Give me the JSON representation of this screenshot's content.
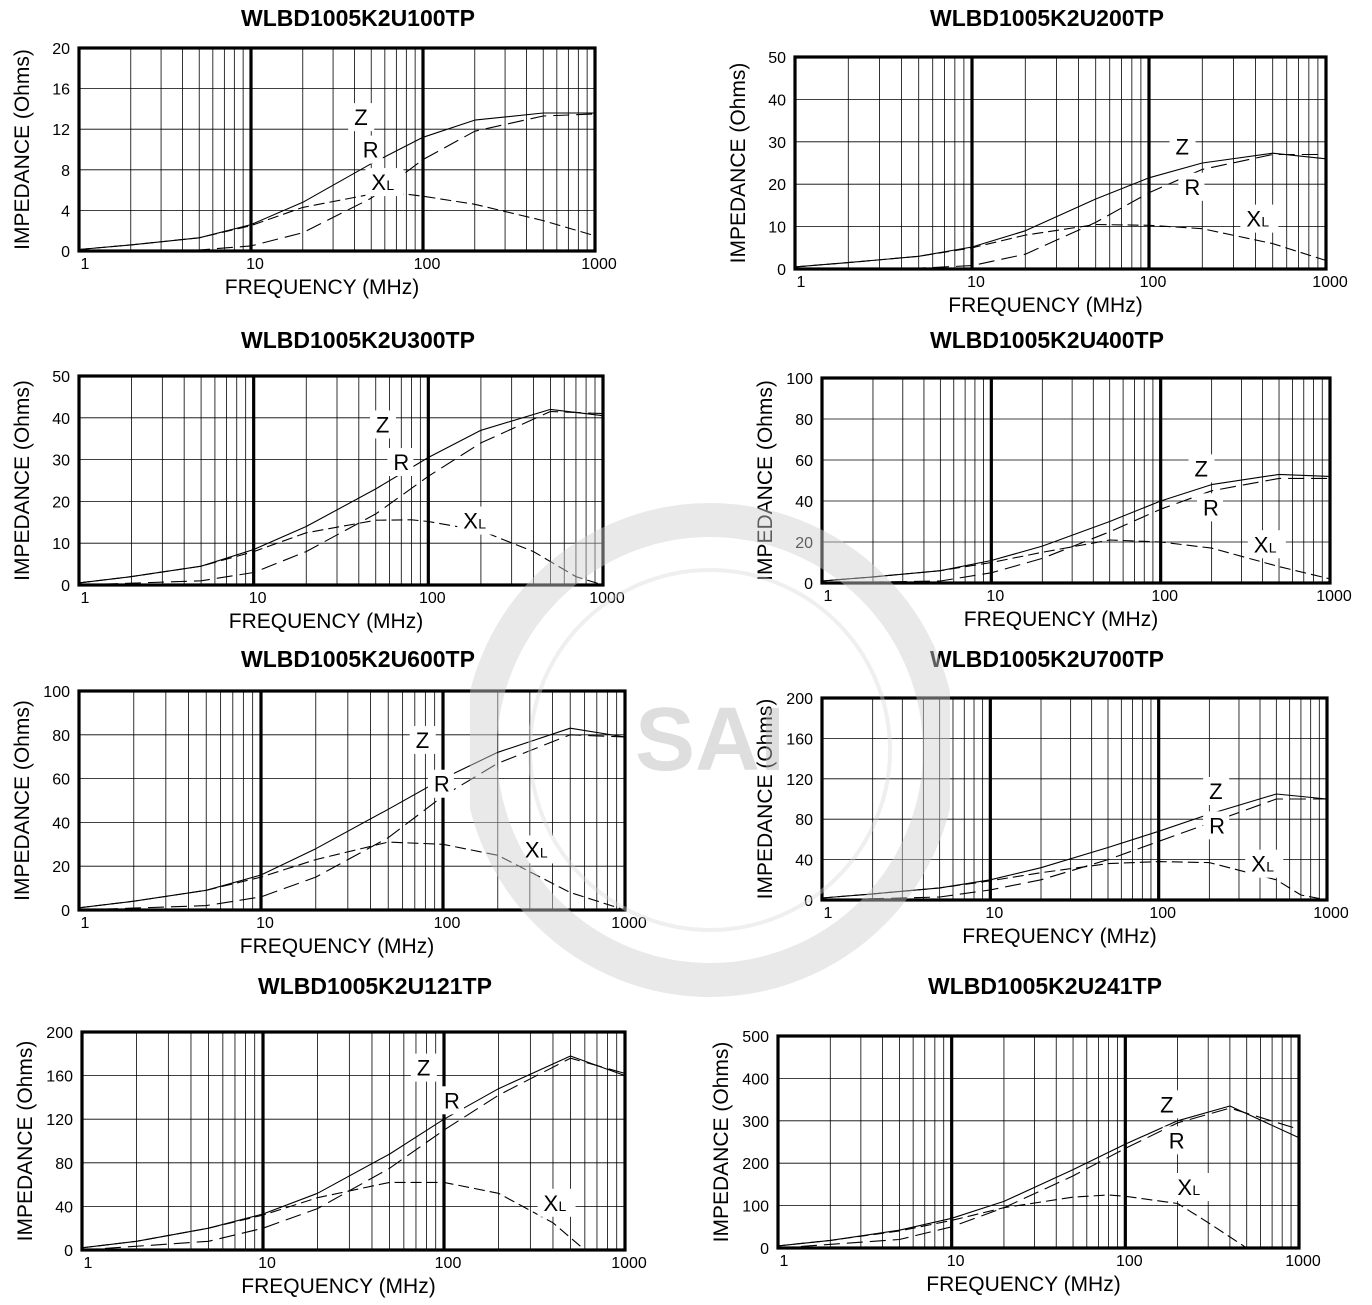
{
  "watermark": {
    "letters": "SAI",
    "color": "#9a9a9a"
  },
  "colors": {
    "grid": "#000000",
    "curve": "#000000",
    "background": "#ffffff"
  },
  "chart_data": [
    {
      "type": "line",
      "title": "WLBD1005K2U100TP",
      "xlabel": "FREQUENCY (MHz)",
      "ylabel": "IMPEDANCE (Ohms)",
      "x_scale": "log",
      "xlim": [
        1,
        1000
      ],
      "ylim": [
        0,
        20
      ],
      "x_ticks": [
        "1",
        "10",
        "100",
        "1000"
      ],
      "y_ticks": [
        "0",
        "4",
        "8",
        "12",
        "16",
        "20"
      ],
      "series": [
        {
          "name": "Z",
          "x": [
            1,
            2,
            5,
            10,
            20,
            50,
            100,
            200,
            500,
            1000
          ],
          "y": [
            0.15,
            0.6,
            1.3,
            2.6,
            4.8,
            8.6,
            11.2,
            12.9,
            13.6,
            13.6
          ]
        },
        {
          "name": "R",
          "x": [
            1,
            5,
            10,
            20,
            50,
            100,
            200,
            500,
            1000
          ],
          "y": [
            0,
            0.1,
            0.5,
            1.8,
            5.2,
            9.0,
            11.8,
            13.3,
            13.5
          ]
        },
        {
          "name": "XL",
          "x": [
            1,
            2,
            5,
            10,
            20,
            50,
            80,
            100,
            200,
            500,
            1000
          ],
          "y": [
            0.15,
            0.6,
            1.3,
            2.5,
            4.3,
            5.6,
            5.6,
            5.4,
            4.6,
            3.0,
            1.5
          ]
        }
      ],
      "labels": [
        "Z",
        "R",
        "X",
        "L"
      ]
    },
    {
      "type": "line",
      "title": "WLBD1005K2U200TP",
      "xlabel": "FREQUENCY (MHz)",
      "ylabel": "IMPEDANCE (Ohms)",
      "x_scale": "log",
      "xlim": [
        1,
        1000
      ],
      "ylim": [
        0,
        50
      ],
      "x_ticks": [
        "1",
        "10",
        "100",
        "1000"
      ],
      "y_ticks": [
        "0",
        "10",
        "20",
        "30",
        "40",
        "50"
      ],
      "series": [
        {
          "name": "Z",
          "x": [
            1,
            2,
            5,
            10,
            20,
            50,
            100,
            200,
            500,
            1000
          ],
          "y": [
            0.5,
            1.5,
            3.0,
            5.2,
            9.0,
            16.5,
            21.5,
            25.0,
            27.3,
            26.0
          ]
        },
        {
          "name": "R",
          "x": [
            1,
            5,
            10,
            20,
            50,
            100,
            200,
            500,
            1000
          ],
          "y": [
            0,
            0.2,
            0.8,
            3.5,
            11.0,
            18.0,
            23.5,
            27.0,
            27.0
          ]
        },
        {
          "name": "XL",
          "x": [
            1,
            2,
            5,
            10,
            20,
            50,
            100,
            200,
            500,
            1000
          ],
          "y": [
            0.5,
            1.5,
            3.0,
            5.0,
            8.0,
            10.5,
            10.3,
            9.5,
            6.0,
            2.0
          ]
        }
      ],
      "labels": [
        "Z",
        "R",
        "X",
        "L"
      ]
    },
    {
      "type": "line",
      "title": "WLBD1005K2U300TP",
      "xlabel": "FREQUENCY (MHz)",
      "ylabel": "IMPEDANCE (Ohms)",
      "x_scale": "log",
      "xlim": [
        1,
        1000
      ],
      "ylim": [
        0,
        50
      ],
      "x_ticks": [
        "1",
        "10",
        "100",
        "1000"
      ],
      "y_ticks": [
        "0",
        "10",
        "20",
        "30",
        "40",
        "50"
      ],
      "series": [
        {
          "name": "Z",
          "x": [
            1,
            2,
            5,
            10,
            20,
            50,
            100,
            200,
            500,
            1000
          ],
          "y": [
            0.5,
            2.0,
            4.5,
            8.5,
            14.0,
            23.0,
            30.5,
            37.0,
            42.0,
            40.5
          ]
        },
        {
          "name": "R",
          "x": [
            1,
            5,
            10,
            20,
            50,
            100,
            200,
            500,
            1000
          ],
          "y": [
            0,
            1.0,
            3.0,
            8.0,
            17.0,
            26.0,
            34.0,
            41.5,
            41.0
          ]
        },
        {
          "name": "XL",
          "x": [
            1,
            2,
            5,
            10,
            20,
            50,
            80,
            100,
            200,
            400,
            700,
            1000
          ],
          "y": [
            0.5,
            2.0,
            4.5,
            8.0,
            12.5,
            15.5,
            15.6,
            15.2,
            13.0,
            8.0,
            2.0,
            0
          ]
        }
      ],
      "labels": [
        "Z",
        "R",
        "X",
        "L"
      ]
    },
    {
      "type": "line",
      "title": "WLBD1005K2U400TP",
      "xlabel": "FREQUENCY (MHz)",
      "ylabel": "IMPEDANCE (Ohms)",
      "x_scale": "log",
      "xlim": [
        1,
        1000
      ],
      "ylim": [
        0,
        100
      ],
      "x_ticks": [
        "1",
        "10",
        "100",
        "1000"
      ],
      "y_ticks": [
        "0",
        "20",
        "40",
        "60",
        "80",
        "100"
      ],
      "series": [
        {
          "name": "Z",
          "x": [
            1,
            2,
            5,
            10,
            20,
            50,
            100,
            200,
            500,
            1000
          ],
          "y": [
            1,
            3,
            6,
            11,
            18,
            30,
            40,
            48,
            53,
            52
          ]
        },
        {
          "name": "R",
          "x": [
            1,
            5,
            10,
            20,
            50,
            100,
            200,
            500,
            1000
          ],
          "y": [
            0,
            1,
            5,
            12,
            25,
            36,
            45,
            51,
            51
          ]
        },
        {
          "name": "XL",
          "x": [
            1,
            2,
            5,
            10,
            20,
            50,
            100,
            200,
            500,
            1000
          ],
          "y": [
            1,
            3,
            6,
            10,
            15,
            21,
            20,
            17,
            8,
            2
          ]
        }
      ],
      "labels": [
        "Z",
        "R",
        "X",
        "L"
      ]
    },
    {
      "type": "line",
      "title": "WLBD1005K2U600TP",
      "xlabel": "FREQUENCY (MHz)",
      "ylabel": "IMPEDANCE (Ohms)",
      "x_scale": "log",
      "xlim": [
        1,
        1000
      ],
      "ylim": [
        0,
        100
      ],
      "x_ticks": [
        "1",
        "10",
        "100",
        "1000"
      ],
      "y_ticks": [
        "0",
        "20",
        "40",
        "60",
        "80",
        "100"
      ],
      "series": [
        {
          "name": "Z",
          "x": [
            1,
            2,
            5,
            10,
            20,
            50,
            100,
            200,
            500,
            1000
          ],
          "y": [
            1,
            4,
            9,
            16,
            28,
            46,
            60,
            72,
            83,
            79
          ]
        },
        {
          "name": "R",
          "x": [
            1,
            5,
            10,
            20,
            50,
            100,
            200,
            500,
            1000
          ],
          "y": [
            0,
            2,
            6,
            15,
            33,
            52,
            67,
            80,
            79
          ]
        },
        {
          "name": "XL",
          "x": [
            1,
            2,
            5,
            10,
            20,
            50,
            100,
            200,
            500,
            1000
          ],
          "y": [
            1,
            4,
            9,
            15,
            23,
            31,
            30,
            25,
            8,
            0
          ]
        }
      ],
      "labels": [
        "Z",
        "R",
        "X",
        "L"
      ]
    },
    {
      "type": "line",
      "title": "WLBD1005K2U700TP",
      "xlabel": "FREQUENCY (MHz)",
      "ylabel": "IMPEDANCE (Ohms)",
      "x_scale": "log",
      "xlim": [
        1,
        1000
      ],
      "ylim": [
        0,
        200
      ],
      "x_ticks": [
        "1",
        "10",
        "100",
        "1000"
      ],
      "y_ticks": [
        "0",
        "40",
        "80",
        "120",
        "160",
        "200"
      ],
      "series": [
        {
          "name": "Z",
          "x": [
            1,
            2,
            5,
            10,
            20,
            50,
            100,
            200,
            500,
            1000
          ],
          "y": [
            2,
            6,
            12,
            20,
            32,
            52,
            68,
            85,
            105,
            100
          ]
        },
        {
          "name": "R",
          "x": [
            1,
            5,
            10,
            20,
            50,
            100,
            200,
            500,
            1000
          ],
          "y": [
            0,
            3,
            10,
            20,
            40,
            58,
            76,
            100,
            100
          ]
        },
        {
          "name": "XL",
          "x": [
            1,
            2,
            5,
            10,
            20,
            50,
            100,
            200,
            500,
            700,
            1000
          ],
          "y": [
            2,
            6,
            12,
            19,
            27,
            36,
            38,
            37,
            20,
            5,
            0
          ]
        }
      ],
      "labels": [
        "Z",
        "R",
        "X",
        "L"
      ]
    },
    {
      "type": "line",
      "title": "WLBD1005K2U121TP",
      "xlabel": "FREQUENCY (MHz)",
      "ylabel": "IMPEDANCE (Ohms)",
      "x_scale": "log",
      "xlim": [
        1,
        1000
      ],
      "ylim": [
        0,
        200
      ],
      "x_ticks": [
        "1",
        "10",
        "100",
        "1000"
      ],
      "y_ticks": [
        "0",
        "40",
        "80",
        "120",
        "160",
        "200"
      ],
      "series": [
        {
          "name": "Z",
          "x": [
            1,
            2,
            5,
            10,
            20,
            50,
            100,
            200,
            500,
            1000
          ],
          "y": [
            2,
            8,
            20,
            33,
            52,
            88,
            120,
            148,
            178,
            160
          ]
        },
        {
          "name": "R",
          "x": [
            1,
            5,
            10,
            20,
            50,
            100,
            200,
            500,
            1000
          ],
          "y": [
            0,
            8,
            20,
            38,
            75,
            110,
            142,
            176,
            162
          ]
        },
        {
          "name": "XL",
          "x": [
            1,
            2,
            5,
            10,
            20,
            50,
            100,
            200,
            400,
            600,
            1000
          ],
          "y": [
            2,
            8,
            20,
            32,
            48,
            62,
            62,
            52,
            25,
            0,
            0
          ]
        }
      ],
      "labels": [
        "Z",
        "R",
        "X",
        "L"
      ]
    },
    {
      "type": "line",
      "title": "WLBD1005K2U241TP",
      "xlabel": "FREQUENCY (MHz)",
      "ylabel": "IMPEDANCE (Ohms)",
      "x_scale": "log",
      "xlim": [
        1,
        1000
      ],
      "ylim": [
        0,
        500
      ],
      "x_ticks": [
        "1",
        "10",
        "100",
        "1000"
      ],
      "y_ticks": [
        "0",
        "100",
        "200",
        "300",
        "400",
        "500"
      ],
      "series": [
        {
          "name": "Z",
          "x": [
            1,
            2,
            5,
            10,
            20,
            50,
            100,
            200,
            400,
            1000
          ],
          "y": [
            5,
            18,
            42,
            70,
            110,
            185,
            245,
            300,
            335,
            260
          ]
        },
        {
          "name": "R",
          "x": [
            1,
            5,
            10,
            20,
            50,
            100,
            200,
            400,
            1000
          ],
          "y": [
            0,
            20,
            50,
            95,
            170,
            235,
            295,
            330,
            280
          ]
        },
        {
          "name": "XL",
          "x": [
            1,
            2,
            5,
            10,
            20,
            50,
            80,
            100,
            200,
            300,
            500,
            1000
          ],
          "y": [
            5,
            18,
            40,
            65,
            95,
            120,
            125,
            122,
            105,
            60,
            0,
            0
          ]
        }
      ],
      "labels": [
        "Z",
        "R",
        "X",
        "L"
      ]
    }
  ]
}
